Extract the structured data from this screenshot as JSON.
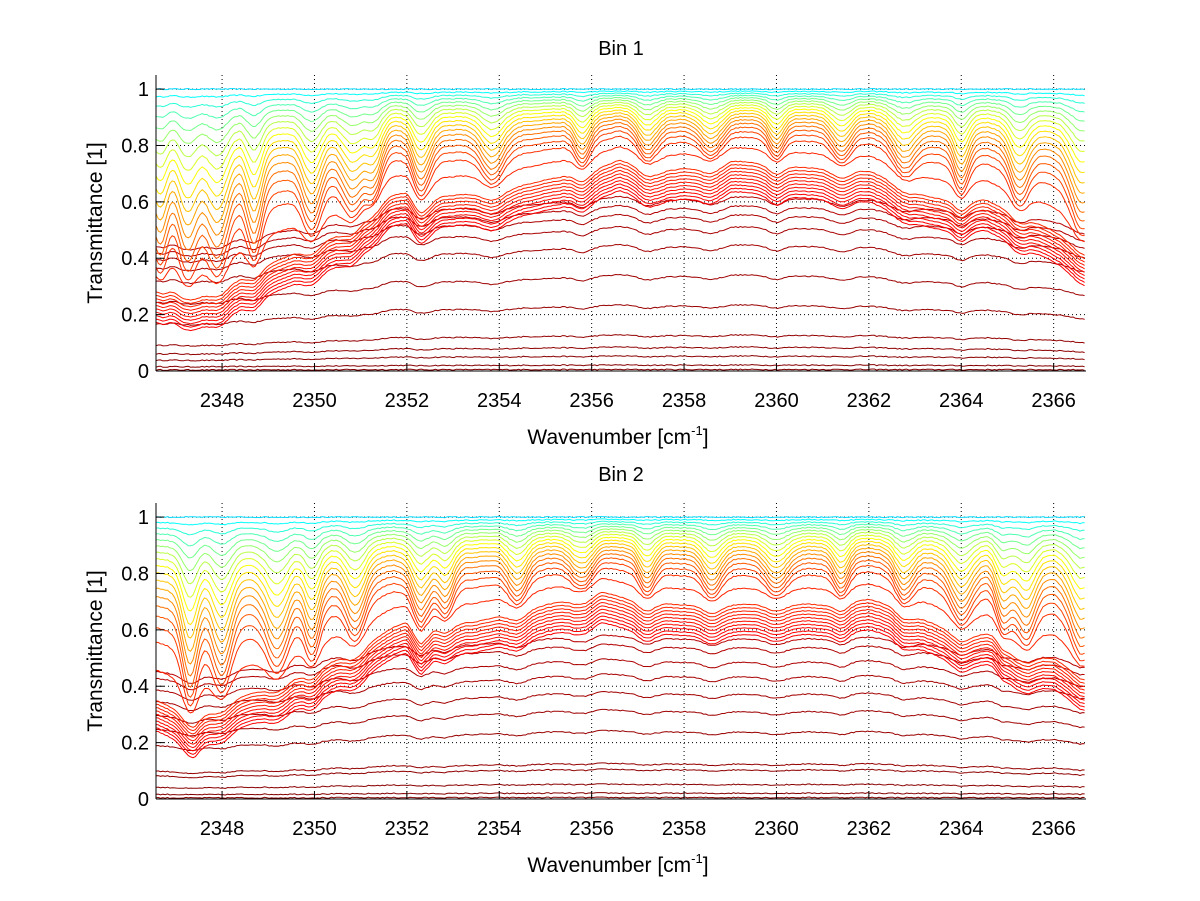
{
  "chart_data": [
    {
      "type": "line",
      "title": "Bin 1",
      "xlabel": "Wavenumber [cm^-1]",
      "xlabel_base": "Wavenumber [cm",
      "xlabel_sup": "-1",
      "xlabel_end": "]",
      "ylabel": "Transmittance [1]",
      "xlim": [
        2346.57,
        2366.7
      ],
      "ylim": [
        0,
        1.05
      ],
      "xticks": [
        2348,
        2350,
        2352,
        2354,
        2356,
        2358,
        2360,
        2362,
        2364,
        2366
      ],
      "xtick_labels": [
        "2348",
        "2350",
        "2352",
        "2354",
        "2356",
        "2358",
        "2360",
        "2362",
        "2364",
        "2366"
      ],
      "yticks": [
        0,
        0.2,
        0.4,
        0.6,
        0.8,
        1
      ],
      "ytick_labels": [
        "0",
        "0.2",
        "0.4",
        "0.6",
        "0.8",
        "1"
      ],
      "grid": true,
      "colormap": "jet (dark red = most absorbing, blue = least)",
      "n_series": 40,
      "absorption_lines_cm1": [
        2346.65,
        2347.25,
        2347.9,
        2348.7,
        2349.95,
        2350.85,
        2351.3,
        2352.3,
        2353.85,
        2355.8,
        2357.2,
        2358.6,
        2360.0,
        2361.4,
        2362.75,
        2364.0,
        2365.25,
        2366.6
      ],
      "saturated_envelope": {
        "x": [
          2346.6,
          2347.0,
          2347.5,
          2348.0,
          2349.0,
          2350.0,
          2350.8,
          2351.3,
          2351.6,
          2352.0,
          2352.3,
          2352.7,
          2354.0,
          2355.0,
          2356.0,
          2356.6,
          2357.5,
          2358.5,
          2359.0,
          2360.0,
          2361.0,
          2362.0,
          2362.7,
          2363.3,
          2364.0,
          2364.5,
          2365.5,
          2366.7
        ],
        "y": [
          0.32,
          0.3,
          0.29,
          0.31,
          0.39,
          0.46,
          0.52,
          0.6,
          0.63,
          0.65,
          0.6,
          0.63,
          0.65,
          0.69,
          0.72,
          0.76,
          0.72,
          0.74,
          0.76,
          0.74,
          0.73,
          0.72,
          0.68,
          0.63,
          0.61,
          0.62,
          0.55,
          0.45
        ]
      },
      "low_series_levels": [
        0.005,
        0.02,
        0.05,
        0.08,
        0.12,
        0.22,
        0.32,
        0.42,
        0.48,
        0.52,
        0.55,
        0.58
      ]
    },
    {
      "type": "line",
      "title": "Bin 2",
      "xlabel": "Wavenumber [cm^-1]",
      "xlabel_base": "Wavenumber [cm",
      "xlabel_sup": "-1",
      "xlabel_end": "]",
      "ylabel": "Transmittance [1]",
      "xlim": [
        2346.57,
        2366.7
      ],
      "ylim": [
        0,
        1.05
      ],
      "xticks": [
        2348,
        2350,
        2352,
        2354,
        2356,
        2358,
        2360,
        2362,
        2364,
        2366
      ],
      "xtick_labels": [
        "2348",
        "2350",
        "2352",
        "2354",
        "2356",
        "2358",
        "2360",
        "2362",
        "2364",
        "2366"
      ],
      "yticks": [
        0,
        0.2,
        0.4,
        0.6,
        0.8,
        1
      ],
      "ytick_labels": [
        "0",
        "0.2",
        "0.4",
        "0.6",
        "0.8",
        "1"
      ],
      "grid": true,
      "colormap": "jet (dark red = most absorbing, blue = least)",
      "n_series": 40,
      "absorption_lines_cm1": [
        2347.3,
        2348.0,
        2349.2,
        2349.95,
        2350.9,
        2352.3,
        2352.85,
        2354.4,
        2355.8,
        2357.2,
        2358.6,
        2360.0,
        2361.4,
        2362.75,
        2364.0,
        2364.9,
        2365.4,
        2366.6
      ],
      "saturated_envelope": {
        "x": [
          2346.6,
          2347.0,
          2347.4,
          2348.0,
          2349.0,
          2350.0,
          2350.8,
          2351.5,
          2352.0,
          2352.3,
          2352.6,
          2353.5,
          2354.5,
          2355.5,
          2356.2,
          2357.0,
          2358.0,
          2359.0,
          2360.0,
          2361.0,
          2362.0,
          2362.5,
          2363.3,
          2364.0,
          2364.7,
          2365.2,
          2366.0,
          2366.7
        ],
        "y": [
          0.36,
          0.33,
          0.29,
          0.35,
          0.41,
          0.47,
          0.53,
          0.6,
          0.65,
          0.59,
          0.63,
          0.64,
          0.68,
          0.72,
          0.75,
          0.71,
          0.7,
          0.7,
          0.71,
          0.7,
          0.72,
          0.7,
          0.64,
          0.6,
          0.6,
          0.53,
          0.51,
          0.46
        ]
      },
      "low_series_levels": [
        0.005,
        0.02,
        0.05,
        0.1,
        0.12,
        0.23,
        0.3,
        0.36,
        0.42,
        0.47,
        0.52,
        0.55
      ]
    }
  ]
}
